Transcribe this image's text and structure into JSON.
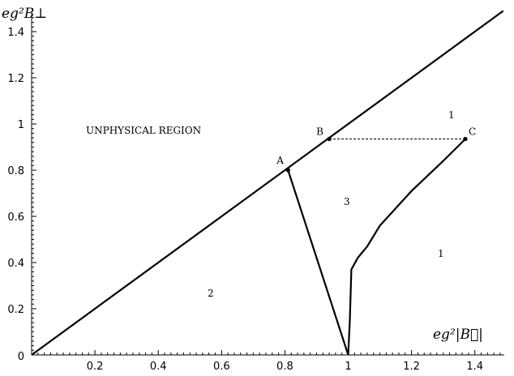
{
  "axes": {
    "y_label": "eg²B⊥",
    "x_label": "eg²|B⃗|",
    "x_ticks": [
      "0.2",
      "0.4",
      "0.6",
      "0.8",
      "1",
      "1.2",
      "1.4"
    ],
    "y_ticks": [
      "0.2",
      "0.4",
      "0.6",
      "0.8",
      "1",
      "1.2",
      "1.4"
    ],
    "origin_label": "0",
    "x_range": [
      0,
      1.49
    ],
    "y_range": [
      0,
      1.54
    ]
  },
  "points": {
    "A": {
      "label": "A",
      "x": 0.81,
      "y": 0.8
    },
    "B": {
      "label": "B",
      "x": 0.94,
      "y": 0.935
    },
    "C": {
      "label": "C",
      "x": 1.37,
      "y": 0.935
    }
  },
  "regions": {
    "unphysical": "UNPHYSICAL REGION",
    "r1_top": "1",
    "r1_right": "1",
    "r2": "2",
    "r3": "3"
  },
  "curves": {
    "diagonal": [
      [
        0,
        0
      ],
      [
        1.49,
        1.49
      ]
    ],
    "a_to_1": [
      [
        0.81,
        0.8
      ],
      [
        1.0,
        0.0
      ]
    ],
    "boundary_curve": [
      [
        1.0,
        0.0
      ],
      [
        1.005,
        0.15
      ],
      [
        1.01,
        0.37
      ],
      [
        1.03,
        0.42
      ],
      [
        1.06,
        0.47
      ],
      [
        1.1,
        0.56
      ],
      [
        1.2,
        0.71
      ],
      [
        1.3,
        0.84
      ],
      [
        1.37,
        0.935
      ]
    ],
    "dashed_bc": [
      [
        0.94,
        0.935
      ],
      [
        1.37,
        0.935
      ]
    ]
  }
}
